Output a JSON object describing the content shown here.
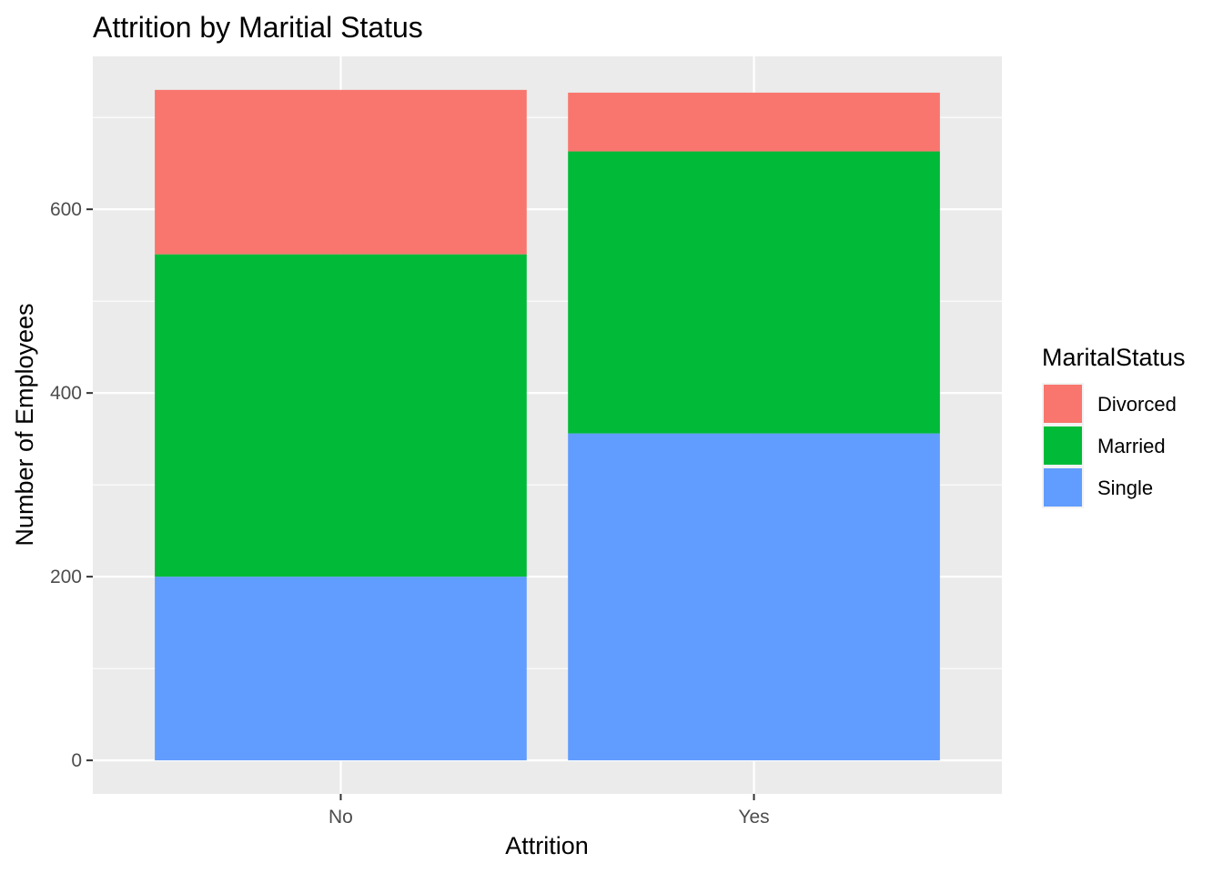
{
  "chart_data": {
    "type": "bar",
    "stacked": true,
    "title": "Attrition by Maritial Status",
    "xlabel": "Attrition",
    "ylabel": "Number of Employees",
    "categories": [
      "No",
      "Yes"
    ],
    "series": [
      {
        "name": "Divorced",
        "color": "#F8766D",
        "values": [
          179,
          64
        ]
      },
      {
        "name": "Married",
        "color": "#00BA38",
        "values": [
          351,
          307
        ]
      },
      {
        "name": "Single",
        "color": "#619CFF",
        "values": [
          200,
          356
        ]
      }
    ],
    "stack_order_bottom_to_top": [
      "Single",
      "Married",
      "Divorced"
    ],
    "ylim": [
      -36.5,
      766.5
    ],
    "yticks": [
      0,
      200,
      400,
      600
    ],
    "ytick_labels": [
      "0",
      "200",
      "400",
      "600"
    ],
    "grid": true,
    "panel_background": "#EBEBEB",
    "legend": {
      "title": "MaritalStatus",
      "position": "right",
      "entries": [
        "Divorced",
        "Married",
        "Single"
      ]
    }
  }
}
